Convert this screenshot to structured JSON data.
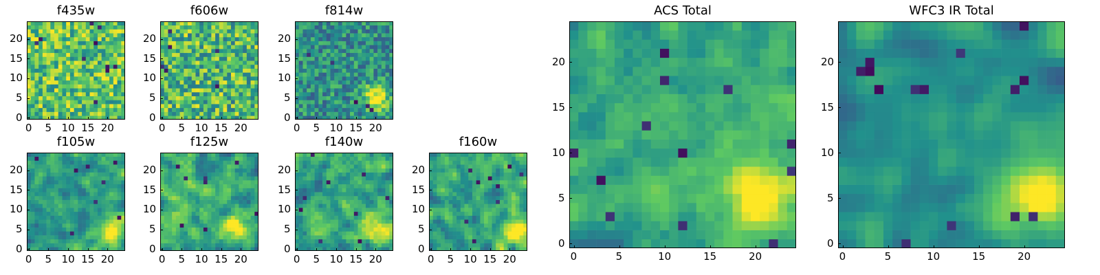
{
  "figure": {
    "colormap": "viridis",
    "colormap_stops": [
      "#440154",
      "#3b528b",
      "#21918c",
      "#5ec962",
      "#fde725"
    ]
  },
  "chart_data": [
    {
      "type": "heatmap",
      "title": "f435w",
      "grid": false,
      "xlim": [
        0,
        24
      ],
      "ylim": [
        0,
        24
      ],
      "xticks": [
        "0",
        "5",
        "10",
        "15",
        "20"
      ],
      "yticks": [
        "0",
        "5",
        "10",
        "15",
        "20"
      ],
      "pattern": {
        "seed": 11,
        "noise": 0.55,
        "smooth": 0,
        "base": 0.72,
        "dark_spots": 10,
        "blob": null
      }
    },
    {
      "type": "heatmap",
      "title": "f606w",
      "grid": false,
      "xlim": [
        0,
        24
      ],
      "ylim": [
        0,
        24
      ],
      "xticks": [
        "0",
        "5",
        "10",
        "15",
        "20"
      ],
      "yticks": [
        "0",
        "5",
        "10",
        "15",
        "20"
      ],
      "pattern": {
        "seed": 23,
        "noise": 0.6,
        "smooth": 0,
        "base": 0.68,
        "dark_spots": 6,
        "blob": null
      }
    },
    {
      "type": "heatmap",
      "title": "f814w",
      "grid": false,
      "xlim": [
        0,
        24
      ],
      "ylim": [
        0,
        24
      ],
      "xticks": [
        "0",
        "5",
        "10",
        "15",
        "20"
      ],
      "yticks": [
        "0",
        "5",
        "10",
        "15",
        "20"
      ],
      "pattern": {
        "seed": 37,
        "noise": 0.45,
        "smooth": 0,
        "base": 0.5,
        "dark_spots": 5,
        "blob": {
          "cx": 20,
          "cy": 5,
          "r": 2.2,
          "amp": 0.6
        }
      }
    },
    {
      "type": "heatmap",
      "title": "f105w",
      "grid": false,
      "xlim": [
        0,
        24
      ],
      "ylim": [
        0,
        24
      ],
      "xticks": [
        "0",
        "5",
        "10",
        "15",
        "20"
      ],
      "yticks": [
        "0",
        "5",
        "10",
        "15",
        "20"
      ],
      "pattern": {
        "seed": 41,
        "noise": 0.5,
        "smooth": 1,
        "base": 0.55,
        "dark_spots": 8,
        "blob": {
          "cx": 21,
          "cy": 5,
          "r": 2.5,
          "amp": 0.45
        }
      }
    },
    {
      "type": "heatmap",
      "title": "f125w",
      "grid": false,
      "xlim": [
        0,
        24
      ],
      "ylim": [
        0,
        24
      ],
      "xticks": [
        "0",
        "5",
        "10",
        "15",
        "20"
      ],
      "yticks": [
        "0",
        "5",
        "10",
        "15",
        "20"
      ],
      "pattern": {
        "seed": 53,
        "noise": 0.55,
        "smooth": 1,
        "base": 0.62,
        "dark_spots": 8,
        "blob": {
          "cx": 20,
          "cy": 5,
          "r": 2.5,
          "amp": 0.4
        }
      }
    },
    {
      "type": "heatmap",
      "title": "f140w",
      "grid": false,
      "xlim": [
        0,
        24
      ],
      "ylim": [
        0,
        24
      ],
      "xticks": [
        "0",
        "5",
        "10",
        "15",
        "20"
      ],
      "yticks": [
        "0",
        "5",
        "10",
        "15",
        "20"
      ],
      "pattern": {
        "seed": 67,
        "noise": 0.55,
        "smooth": 1,
        "base": 0.6,
        "dark_spots": 9,
        "blob": {
          "cx": 21,
          "cy": 5,
          "r": 2.5,
          "amp": 0.45
        }
      }
    },
    {
      "type": "heatmap",
      "title": "f160w",
      "grid": false,
      "xlim": [
        0,
        24
      ],
      "ylim": [
        0,
        24
      ],
      "xticks": [
        "0",
        "5",
        "10",
        "15",
        "20"
      ],
      "yticks": [
        "0",
        "5",
        "10",
        "15",
        "20"
      ],
      "pattern": {
        "seed": 79,
        "noise": 0.55,
        "smooth": 1,
        "base": 0.6,
        "dark_spots": 9,
        "blob": {
          "cx": 21,
          "cy": 4,
          "r": 2.5,
          "amp": 0.45
        }
      }
    },
    {
      "type": "heatmap",
      "title": "ACS Total",
      "grid": false,
      "xlim": [
        0,
        24
      ],
      "ylim": [
        0,
        24
      ],
      "xticks": [
        "0",
        "5",
        "10",
        "15",
        "20"
      ],
      "yticks": [
        "0",
        "5",
        "10",
        "15",
        "20"
      ],
      "pattern": {
        "seed": 97,
        "noise": 0.35,
        "smooth": 1,
        "base": 0.6,
        "dark_spots": 12,
        "blob": {
          "cx": 20,
          "cy": 5,
          "r": 2.6,
          "amp": 0.55
        }
      }
    },
    {
      "type": "heatmap",
      "title": "WFC3 IR Total",
      "grid": false,
      "xlim": [
        0,
        24
      ],
      "ylim": [
        0,
        24
      ],
      "xticks": [
        "0",
        "5",
        "10",
        "15",
        "20"
      ],
      "yticks": [
        "0",
        "5",
        "10",
        "15",
        "20"
      ],
      "pattern": {
        "seed": 113,
        "noise": 0.3,
        "smooth": 2,
        "base": 0.5,
        "dark_spots": 14,
        "blob": {
          "cx": 21,
          "cy": 5,
          "r": 3,
          "amp": 0.55
        }
      }
    }
  ]
}
